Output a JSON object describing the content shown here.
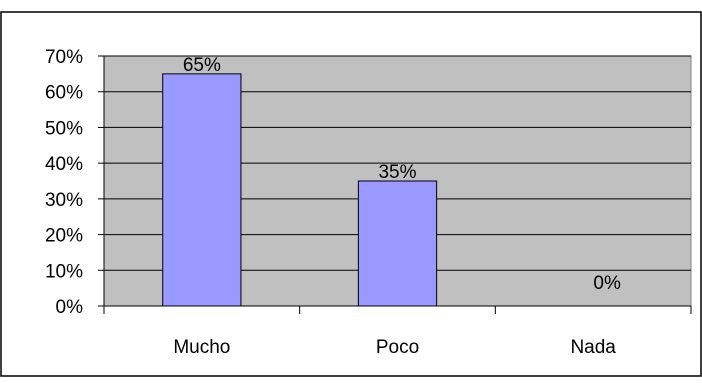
{
  "chart_data": {
    "type": "bar",
    "title": "",
    "xlabel": "",
    "ylabel": "",
    "categories": [
      "Mucho",
      "Poco",
      "Nada"
    ],
    "values": [
      65,
      35,
      0
    ],
    "data_labels": [
      "65%",
      "35%",
      "0%"
    ],
    "y_ticks": [
      "0%",
      "10%",
      "20%",
      "30%",
      "40%",
      "50%",
      "60%",
      "70%"
    ],
    "ylim": [
      0,
      70
    ],
    "grid": true,
    "legend": "none",
    "colors": {
      "bar": "#9999ff",
      "plot_background": "#c0c0c0",
      "gridline": "#000000"
    }
  }
}
